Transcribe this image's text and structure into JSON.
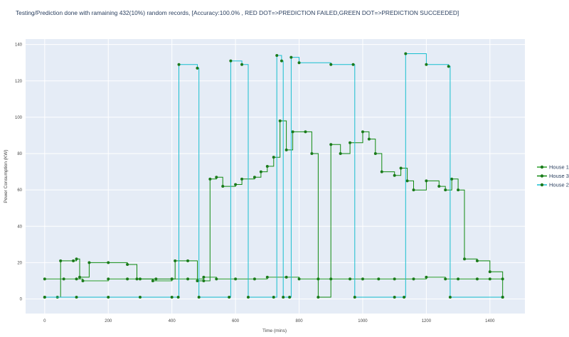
{
  "chart_data": {
    "type": "line",
    "title": "Testing/Prediction done with ramaining 432(10%) random records, [Accuracy:100.0% , RED DOT=>PREDICTION FAILED,GREEN DOT=>PREDICTION SUCCEEDED]",
    "xlabel": "Time (mins)",
    "ylabel": "Power Consumption (KW)",
    "xlim": [
      -60,
      1510
    ],
    "ylim": [
      -8,
      143
    ],
    "xticks": [
      0,
      200,
      400,
      600,
      800,
      1000,
      1200,
      1400
    ],
    "yticks": [
      0,
      20,
      40,
      60,
      80,
      100,
      120,
      140
    ],
    "x_tick_labels": [
      "0",
      "200",
      "400",
      "600",
      "800",
      "1000",
      "1200",
      "1400"
    ],
    "y_tick_labels": [
      "0",
      "20",
      "40",
      "60",
      "80",
      "100",
      "120",
      "140"
    ],
    "grid": true,
    "legend_position": "right",
    "series": [
      {
        "name": "House 1",
        "color": "#2ca02c",
        "points": [
          [
            0,
            11
          ],
          [
            60,
            11
          ],
          [
            100,
            11
          ],
          [
            120,
            10
          ],
          [
            200,
            11
          ],
          [
            260,
            11
          ],
          [
            300,
            11
          ],
          [
            340,
            10
          ],
          [
            400,
            11
          ],
          [
            450,
            11
          ],
          [
            500,
            12
          ],
          [
            540,
            11
          ],
          [
            600,
            11
          ],
          [
            660,
            11
          ],
          [
            700,
            12
          ],
          [
            760,
            12
          ],
          [
            800,
            11
          ],
          [
            860,
            11
          ],
          [
            900,
            11
          ],
          [
            960,
            11
          ],
          [
            1000,
            11
          ],
          [
            1050,
            11
          ],
          [
            1100,
            11
          ],
          [
            1160,
            11
          ],
          [
            1200,
            12
          ],
          [
            1260,
            11
          ],
          [
            1300,
            11
          ],
          [
            1360,
            11
          ],
          [
            1400,
            11
          ],
          [
            1440,
            11
          ]
        ]
      },
      {
        "name": "House 3",
        "color": "#108a10",
        "points": [
          [
            0,
            1
          ],
          [
            40,
            1
          ],
          [
            50,
            21
          ],
          [
            90,
            21
          ],
          [
            100,
            22
          ],
          [
            110,
            12
          ],
          [
            140,
            20
          ],
          [
            200,
            20
          ],
          [
            260,
            19
          ],
          [
            290,
            11
          ],
          [
            350,
            11
          ],
          [
            400,
            11
          ],
          [
            410,
            21
          ],
          [
            450,
            21
          ],
          [
            480,
            10
          ],
          [
            500,
            10
          ],
          [
            520,
            66
          ],
          [
            540,
            67
          ],
          [
            560,
            62
          ],
          [
            600,
            63
          ],
          [
            620,
            66
          ],
          [
            660,
            67
          ],
          [
            680,
            70
          ],
          [
            700,
            73
          ],
          [
            720,
            78
          ],
          [
            740,
            98
          ],
          [
            760,
            82
          ],
          [
            780,
            92
          ],
          [
            820,
            92
          ],
          [
            840,
            80
          ],
          [
            860,
            1
          ],
          [
            900,
            85
          ],
          [
            930,
            80
          ],
          [
            960,
            86
          ],
          [
            1000,
            92
          ],
          [
            1020,
            88
          ],
          [
            1040,
            80
          ],
          [
            1060,
            70
          ],
          [
            1100,
            68
          ],
          [
            1120,
            72
          ],
          [
            1140,
            65
          ],
          [
            1160,
            60
          ],
          [
            1200,
            65
          ],
          [
            1240,
            62
          ],
          [
            1260,
            60
          ],
          [
            1280,
            66
          ],
          [
            1300,
            60
          ],
          [
            1320,
            22
          ],
          [
            1360,
            21
          ],
          [
            1400,
            15
          ],
          [
            1440,
            1
          ]
        ]
      },
      {
        "name": "House 2",
        "color": "#17becf",
        "points": [
          [
            0,
            1
          ],
          [
            100,
            1
          ],
          [
            200,
            1
          ],
          [
            300,
            1
          ],
          [
            400,
            1
          ],
          [
            420,
            1
          ],
          [
            422,
            129
          ],
          [
            480,
            127
          ],
          [
            485,
            1
          ],
          [
            580,
            1
          ],
          [
            585,
            131
          ],
          [
            620,
            129
          ],
          [
            640,
            1
          ],
          [
            720,
            1
          ],
          [
            730,
            134
          ],
          [
            745,
            131
          ],
          [
            750,
            1
          ],
          [
            770,
            1
          ],
          [
            775,
            133
          ],
          [
            800,
            130
          ],
          [
            900,
            129
          ],
          [
            970,
            129
          ],
          [
            975,
            1
          ],
          [
            1100,
            1
          ],
          [
            1130,
            1
          ],
          [
            1135,
            135
          ],
          [
            1200,
            129
          ],
          [
            1270,
            128
          ],
          [
            1275,
            1
          ],
          [
            1440,
            1
          ]
        ]
      }
    ]
  }
}
